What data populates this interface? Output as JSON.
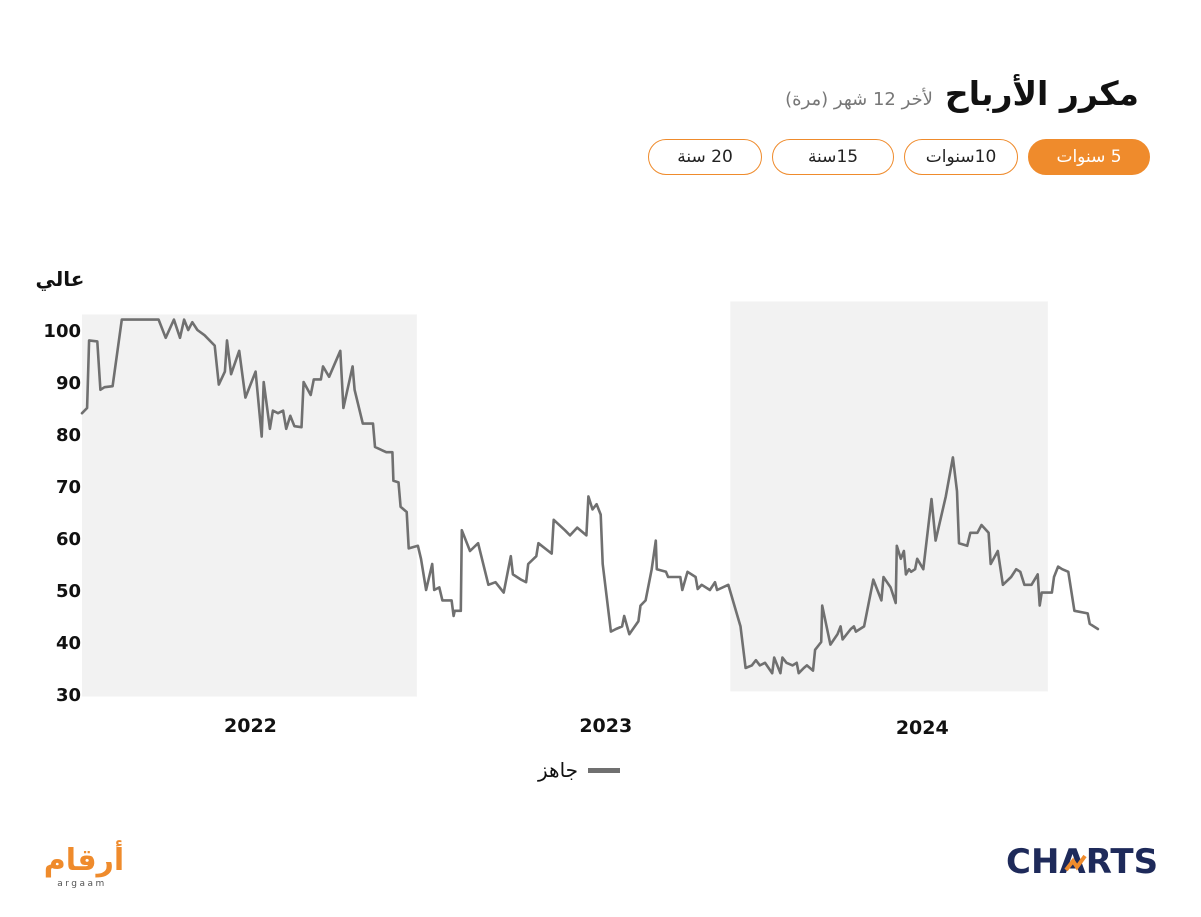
{
  "header": {
    "title": "مكرر الأرباح",
    "subtitle": "لأخر 12 شهر (مرة)"
  },
  "range_buttons": [
    {
      "label": "5 سنوات",
      "active": true
    },
    {
      "label": "10سنوات",
      "active": false
    },
    {
      "label": "15سنة",
      "active": false
    },
    {
      "label": "20 سنة",
      "active": false
    }
  ],
  "colors": {
    "accent": "#ef8b2c",
    "line": "#707070",
    "band": "#f2f2f2",
    "charts_logo": "#1e2a5a"
  },
  "legend": {
    "label": "جاهز"
  },
  "logos": {
    "argaam_ar": "أرقام",
    "argaam_en": "argaam",
    "charts": "CHARTS"
  },
  "chart_data": {
    "type": "line",
    "y_axis_title": "عالي",
    "ylim": [
      30,
      105
    ],
    "yticks": [
      30,
      40,
      50,
      60,
      70,
      80,
      90,
      100
    ],
    "x_range": [
      0,
      100
    ],
    "year_labels": [
      {
        "label": "2022",
        "x": 16.5
      },
      {
        "label": "2023",
        "x": 51.3
      },
      {
        "label": "2024",
        "x": 82.3
      }
    ],
    "shaded_years": [
      {
        "from": 0,
        "to": 32.8,
        "ymin": 29.5,
        "ymax": 103
      },
      {
        "from": 63.5,
        "to": 94.6,
        "ymin": 30.5,
        "ymax": 105.5
      }
    ],
    "grid": false,
    "legend_position": "bottom-center",
    "series": [
      {
        "name": "جاهز",
        "points": [
          [
            0,
            84
          ],
          [
            0.5,
            85
          ],
          [
            0.7,
            98
          ],
          [
            1.5,
            97.8
          ],
          [
            1.8,
            88.5
          ],
          [
            2.2,
            89
          ],
          [
            3,
            89.2
          ],
          [
            3.9,
            102
          ],
          [
            6.5,
            102
          ],
          [
            7.5,
            102
          ],
          [
            8.2,
            98.5
          ],
          [
            9,
            102
          ],
          [
            9.6,
            98.5
          ],
          [
            10,
            102
          ],
          [
            10.4,
            100
          ],
          [
            10.8,
            101.5
          ],
          [
            11.3,
            100
          ],
          [
            12,
            99
          ],
          [
            13,
            97
          ],
          [
            13.4,
            89.5
          ],
          [
            14,
            92
          ],
          [
            14.2,
            98
          ],
          [
            14.6,
            91.5
          ],
          [
            15.4,
            96
          ],
          [
            16,
            87
          ],
          [
            17,
            92
          ],
          [
            17.6,
            79.5
          ],
          [
            17.8,
            90
          ],
          [
            18.4,
            81
          ],
          [
            18.7,
            84.5
          ],
          [
            19.2,
            84
          ],
          [
            19.7,
            84.5
          ],
          [
            20,
            81
          ],
          [
            20.4,
            83.5
          ],
          [
            20.8,
            81.5
          ],
          [
            21.5,
            81.3
          ],
          [
            21.7,
            90
          ],
          [
            22.4,
            87.5
          ],
          [
            22.7,
            90.5
          ],
          [
            23.4,
            90.5
          ],
          [
            23.6,
            93
          ],
          [
            24.2,
            91
          ],
          [
            25.3,
            96
          ],
          [
            25.6,
            85
          ],
          [
            26.5,
            93
          ],
          [
            26.7,
            88.5
          ],
          [
            27.5,
            82
          ],
          [
            28.5,
            82
          ],
          [
            28.7,
            77.5
          ],
          [
            29.8,
            76.5
          ],
          [
            30.4,
            76.5
          ],
          [
            30.5,
            71
          ],
          [
            31,
            70.7
          ],
          [
            31.2,
            66
          ],
          [
            31.8,
            65
          ],
          [
            32,
            58
          ],
          [
            32.9,
            58.5
          ],
          [
            33.2,
            56
          ],
          [
            33.7,
            50
          ],
          [
            34.3,
            55
          ],
          [
            34.5,
            50
          ],
          [
            35,
            50.5
          ],
          [
            35.3,
            48
          ],
          [
            36.2,
            48
          ],
          [
            36.4,
            45
          ],
          [
            36.5,
            46
          ],
          [
            37.1,
            46
          ],
          [
            37.2,
            61.5
          ],
          [
            38,
            57.5
          ],
          [
            38.8,
            59
          ],
          [
            39.8,
            51
          ],
          [
            40.5,
            51.5
          ],
          [
            41.3,
            49.5
          ],
          [
            42,
            56.5
          ],
          [
            42.2,
            53
          ],
          [
            43,
            52
          ],
          [
            43.5,
            51.5
          ],
          [
            43.7,
            55
          ],
          [
            44.5,
            56.5
          ],
          [
            44.7,
            59
          ],
          [
            46,
            57
          ],
          [
            46.2,
            63.5
          ],
          [
            47.3,
            61.5
          ],
          [
            47.8,
            60.5
          ],
          [
            48.5,
            62
          ],
          [
            49.4,
            60.5
          ],
          [
            49.6,
            68
          ],
          [
            50,
            65.5
          ],
          [
            50.4,
            66.5
          ],
          [
            50.8,
            64.5
          ],
          [
            51,
            55
          ],
          [
            51.8,
            42
          ],
          [
            52.3,
            42.5
          ],
          [
            52.9,
            43
          ],
          [
            53.1,
            45
          ],
          [
            53.6,
            41.5
          ],
          [
            54.5,
            44
          ],
          [
            54.7,
            47
          ],
          [
            55.2,
            48
          ],
          [
            55.8,
            54
          ],
          [
            56.2,
            59.5
          ],
          [
            56.3,
            54
          ],
          [
            57.2,
            53.5
          ],
          [
            57.4,
            52.5
          ],
          [
            58.6,
            52.5
          ],
          [
            58.8,
            50
          ],
          [
            59.3,
            53.5
          ],
          [
            60.1,
            52.5
          ],
          [
            60.3,
            50.2
          ],
          [
            60.7,
            51
          ],
          [
            61.5,
            50
          ],
          [
            62,
            51.5
          ],
          [
            62.2,
            50
          ],
          [
            63.3,
            51
          ],
          [
            64.5,
            43
          ],
          [
            65,
            35
          ],
          [
            65.6,
            35.5
          ],
          [
            66,
            36.5
          ],
          [
            66.4,
            35.5
          ],
          [
            66.9,
            36
          ],
          [
            67.6,
            34
          ],
          [
            67.8,
            37
          ],
          [
            68.4,
            34
          ],
          [
            68.6,
            37
          ],
          [
            69,
            36
          ],
          [
            69.6,
            35.5
          ],
          [
            70,
            36
          ],
          [
            70.2,
            34
          ],
          [
            70.7,
            35
          ],
          [
            71,
            35.5
          ],
          [
            71.6,
            34.5
          ],
          [
            71.8,
            38.5
          ],
          [
            72.4,
            40
          ],
          [
            72.5,
            47
          ],
          [
            73.3,
            39.5
          ],
          [
            74,
            41.5
          ],
          [
            74.3,
            43
          ],
          [
            74.5,
            40.5
          ],
          [
            75.3,
            42.5
          ],
          [
            75.6,
            43
          ],
          [
            75.8,
            42
          ],
          [
            76.6,
            43
          ],
          [
            77.5,
            52
          ],
          [
            78.3,
            48
          ],
          [
            78.5,
            52.5
          ],
          [
            79.2,
            50.5
          ],
          [
            79.7,
            47.5
          ],
          [
            79.8,
            58.5
          ],
          [
            80.2,
            56
          ],
          [
            80.5,
            57.5
          ],
          [
            80.7,
            53
          ],
          [
            81,
            54
          ],
          [
            81.2,
            53.5
          ],
          [
            81.6,
            54
          ],
          [
            81.8,
            56
          ],
          [
            82.4,
            54
          ],
          [
            83.2,
            67.5
          ],
          [
            83.6,
            59.5
          ],
          [
            84.6,
            68
          ],
          [
            85.3,
            75.5
          ],
          [
            85.7,
            69
          ],
          [
            85.9,
            59
          ],
          [
            86.7,
            58.5
          ],
          [
            87,
            61
          ],
          [
            87.7,
            61
          ],
          [
            88.1,
            62.5
          ],
          [
            88.8,
            61
          ],
          [
            89,
            55
          ],
          [
            89.7,
            57.5
          ],
          [
            90.2,
            51
          ],
          [
            91,
            52.5
          ],
          [
            91.5,
            54
          ],
          [
            91.9,
            53.5
          ],
          [
            92.3,
            51
          ],
          [
            93,
            51
          ],
          [
            93.6,
            53
          ],
          [
            93.8,
            47
          ],
          [
            94,
            49.5
          ],
          [
            95,
            49.5
          ],
          [
            95.2,
            52.5
          ],
          [
            95.6,
            54.5
          ],
          [
            96,
            54
          ],
          [
            96.6,
            53.5
          ],
          [
            97.2,
            46
          ],
          [
            98.5,
            45.5
          ],
          [
            98.7,
            43.5
          ],
          [
            99.5,
            42.5
          ]
        ]
      }
    ]
  }
}
